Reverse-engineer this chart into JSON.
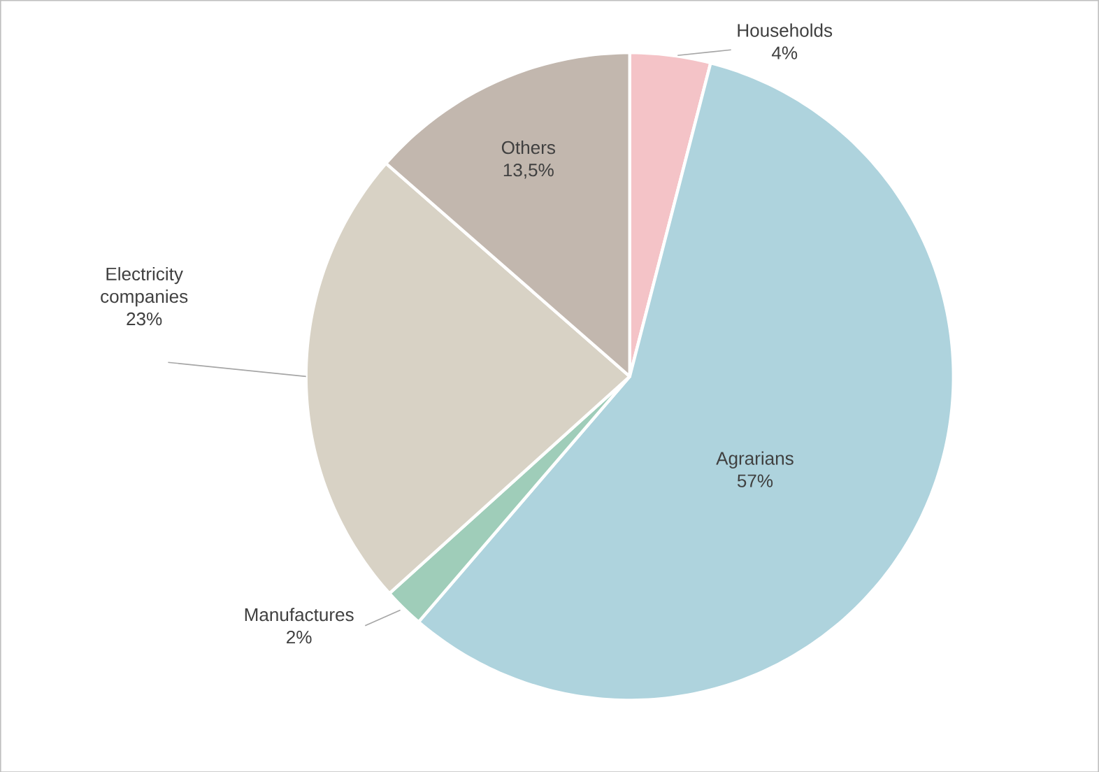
{
  "chart_data": {
    "type": "pie",
    "categories": [
      "Households",
      "Agrarians",
      "Manufactures",
      "Electricity companies",
      "Others"
    ],
    "values": [
      4,
      57,
      2,
      23,
      13.5
    ],
    "value_labels": [
      "4%",
      "57%",
      "2%",
      "23%",
      "13,5%"
    ],
    "colors": [
      "#f4c3c7",
      "#aed3dd",
      "#9fcdb9",
      "#d8d2c5",
      "#c2b7ae"
    ]
  }
}
